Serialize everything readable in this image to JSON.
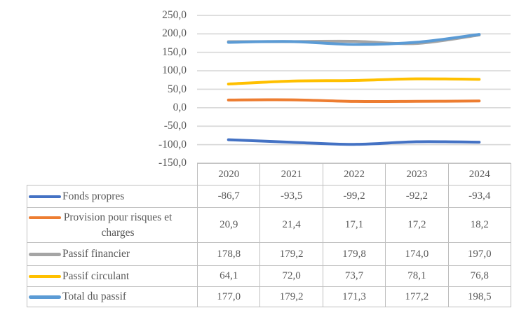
{
  "chart_data": {
    "type": "line",
    "smoothed": true,
    "title": "",
    "xlabel": "",
    "ylabel": "",
    "categories": [
      "2020",
      "2021",
      "2022",
      "2023",
      "2024"
    ],
    "series": [
      {
        "name": "Fonds propres",
        "color": "#4472C4",
        "values": [
          -86.7,
          -93.5,
          -99.2,
          -92.2,
          -93.4
        ]
      },
      {
        "name": "Provision pour risques et charges",
        "color": "#ED7D31",
        "values": [
          20.9,
          21.4,
          17.1,
          17.2,
          18.2
        ]
      },
      {
        "name": "Passif financier",
        "color": "#A5A5A5",
        "values": [
          178.8,
          179.2,
          179.8,
          174.0,
          197.0
        ]
      },
      {
        "name": "Passif circulant",
        "color": "#FFC000",
        "values": [
          64.1,
          72.0,
          73.7,
          78.1,
          76.8
        ]
      },
      {
        "name": "Total du passif",
        "color": "#5B9BD5",
        "values": [
          177.0,
          179.2,
          171.3,
          177.2,
          198.5
        ]
      }
    ],
    "ylim": [
      -150,
      250
    ],
    "ytick_step": 50,
    "ytick_labels": [
      "250,0",
      "200,0",
      "150,0",
      "100,0",
      "50,0",
      "0,0",
      "-50,0",
      "-100,0",
      "-150,0"
    ],
    "grid": true,
    "legend_position": "data-table-left-column",
    "decimal_separator": ","
  },
  "styles": {
    "background": "#FFFFFF",
    "grid_color": "#D9D9D9",
    "axis_text_color": "#595959",
    "table_border_color": "#BFBFBF",
    "table_text_color": "#595959"
  }
}
